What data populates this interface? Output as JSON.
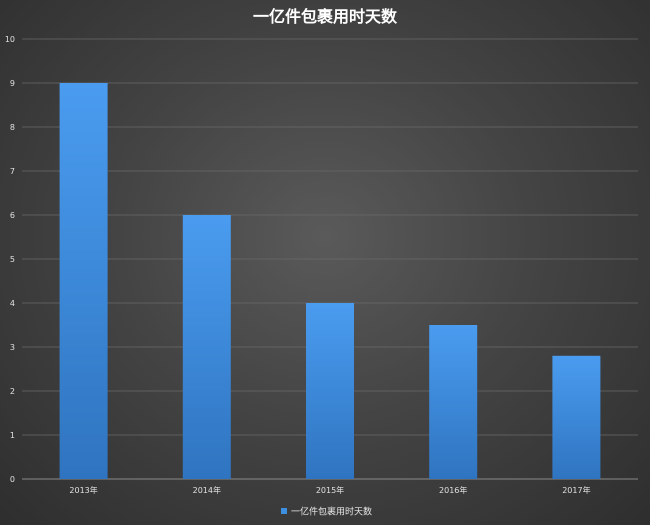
{
  "chart_data": {
    "type": "bar",
    "title": "一亿件包裹用时天数",
    "categories": [
      "2013年",
      "2014年",
      "2015年",
      "2016年",
      "2017年"
    ],
    "series": [
      {
        "name": "一亿件包裹用时天数",
        "values": [
          9,
          6,
          4,
          3.5,
          2.8
        ]
      }
    ],
    "ylim": [
      0,
      10
    ],
    "yticks": [
      "0",
      "1",
      "2",
      "3",
      "4",
      "5",
      "6",
      "7",
      "8",
      "9",
      "10"
    ],
    "grid": true,
    "legend_position": "bottom",
    "colors": {
      "bar": "#3d8fe0",
      "bar_light": "#4a9cf0",
      "bar_dark": "#2f74c0"
    }
  }
}
